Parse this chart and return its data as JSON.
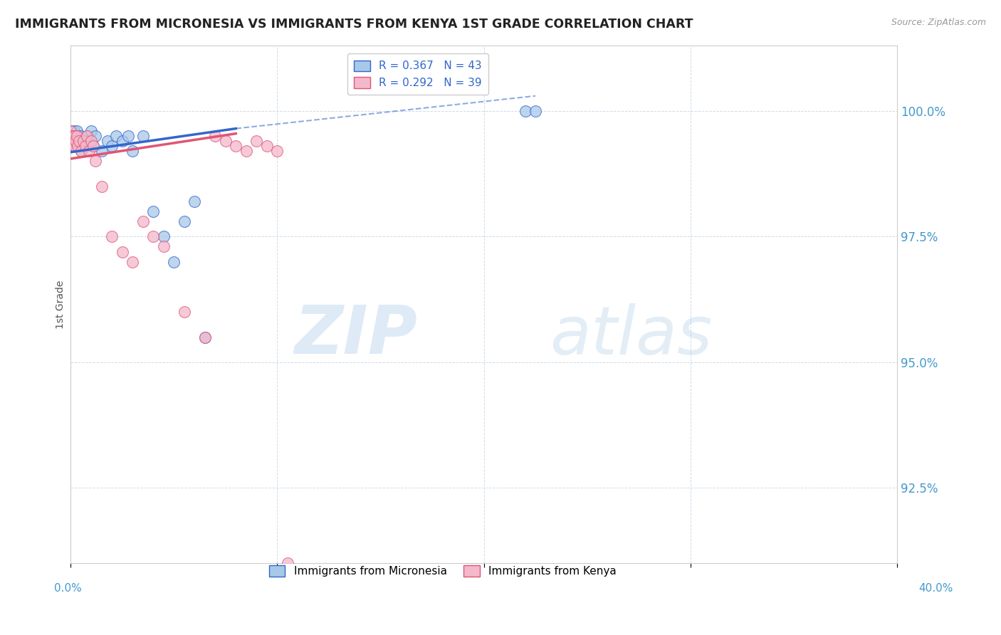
{
  "title": "IMMIGRANTS FROM MICRONESIA VS IMMIGRANTS FROM KENYA 1ST GRADE CORRELATION CHART",
  "source": "Source: ZipAtlas.com",
  "ylabel": "1st Grade",
  "yticks": [
    92.5,
    95.0,
    97.5,
    100.0
  ],
  "ytick_labels": [
    "92.5%",
    "95.0%",
    "97.5%",
    "100.0%"
  ],
  "xlim": [
    0.0,
    40.0
  ],
  "ylim": [
    91.0,
    101.3
  ],
  "blue_color": "#a8c8e8",
  "pink_color": "#f4b8cc",
  "blue_line_color": "#3366cc",
  "pink_line_color": "#e05575",
  "legend_blue_label": "R = 0.367   N = 43",
  "legend_pink_label": "R = 0.292   N = 39",
  "blue_scatter_x": [
    0.0,
    0.0,
    0.0,
    0.0,
    0.05,
    0.05,
    0.1,
    0.1,
    0.15,
    0.15,
    0.2,
    0.2,
    0.25,
    0.3,
    0.3,
    0.35,
    0.4,
    0.4,
    0.5,
    0.5,
    0.6,
    0.7,
    0.8,
    0.9,
    1.0,
    1.1,
    1.2,
    1.5,
    1.8,
    2.0,
    2.2,
    2.5,
    2.8,
    3.0,
    3.5,
    4.0,
    4.5,
    5.0,
    5.5,
    6.0,
    6.5,
    22.0,
    22.5
  ],
  "blue_scatter_y": [
    99.3,
    99.4,
    99.5,
    99.6,
    99.5,
    99.4,
    99.3,
    99.5,
    99.6,
    99.4,
    99.3,
    99.5,
    99.4,
    99.3,
    99.6,
    99.5,
    99.4,
    99.3,
    99.5,
    99.2,
    99.4,
    99.3,
    99.5,
    99.4,
    99.6,
    99.3,
    99.5,
    99.2,
    99.4,
    99.3,
    99.5,
    99.4,
    99.5,
    99.2,
    99.5,
    98.0,
    97.5,
    97.0,
    97.8,
    98.2,
    95.5,
    100.0,
    100.0
  ],
  "pink_scatter_x": [
    0.0,
    0.0,
    0.0,
    0.05,
    0.05,
    0.1,
    0.1,
    0.15,
    0.2,
    0.2,
    0.25,
    0.3,
    0.35,
    0.4,
    0.5,
    0.6,
    0.7,
    0.8,
    0.9,
    1.0,
    1.1,
    1.2,
    1.5,
    2.0,
    2.5,
    3.0,
    3.5,
    4.0,
    4.5,
    5.5,
    6.5,
    7.0,
    7.5,
    8.0,
    8.5,
    9.0,
    9.5,
    10.0,
    10.5
  ],
  "pink_scatter_y": [
    99.4,
    99.5,
    99.6,
    99.5,
    99.4,
    99.3,
    99.5,
    99.4,
    99.3,
    99.5,
    99.4,
    99.5,
    99.3,
    99.4,
    99.2,
    99.4,
    99.3,
    99.5,
    99.2,
    99.4,
    99.3,
    99.0,
    98.5,
    97.5,
    97.2,
    97.0,
    97.8,
    97.5,
    97.3,
    96.0,
    95.5,
    99.5,
    99.4,
    99.3,
    99.2,
    99.4,
    99.3,
    99.2,
    91.0
  ]
}
